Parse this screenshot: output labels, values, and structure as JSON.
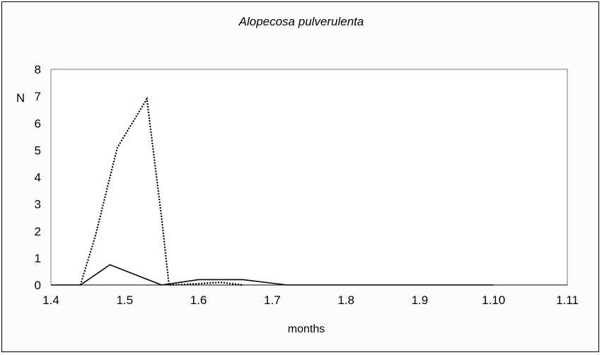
{
  "chart_data": {
    "type": "line",
    "title": "Alopecosa pulverulenta",
    "xlabel": "months",
    "ylabel": "N",
    "categories": [
      "1.4",
      "1.5",
      "1.6",
      "1.7",
      "1.8",
      "1.9",
      "1.10",
      "1.11"
    ],
    "ylim": [
      0,
      8
    ],
    "yticks": [
      "0",
      "1",
      "2",
      "3",
      "4",
      "5",
      "6",
      "7",
      "8"
    ],
    "grid": false,
    "series": [
      {
        "style": "solid",
        "color": "#000000",
        "points": [
          [
            0.0,
            0
          ],
          [
            0.4,
            0
          ],
          [
            0.8,
            0.75
          ],
          [
            1.5,
            0
          ],
          [
            2.0,
            0.2
          ],
          [
            2.6,
            0.2
          ],
          [
            3.2,
            0
          ],
          [
            4.0,
            0
          ],
          [
            5.0,
            0
          ],
          [
            6.0,
            0
          ]
        ]
      },
      {
        "style": "dotted",
        "color": "#000000",
        "points": [
          [
            0.4,
            0
          ],
          [
            0.6,
            1.8
          ],
          [
            0.9,
            5.1
          ],
          [
            1.3,
            6.9
          ],
          [
            1.5,
            2.5
          ],
          [
            1.6,
            0
          ],
          [
            2.0,
            0.05
          ],
          [
            2.3,
            0.1
          ],
          [
            2.6,
            0
          ]
        ]
      }
    ]
  }
}
